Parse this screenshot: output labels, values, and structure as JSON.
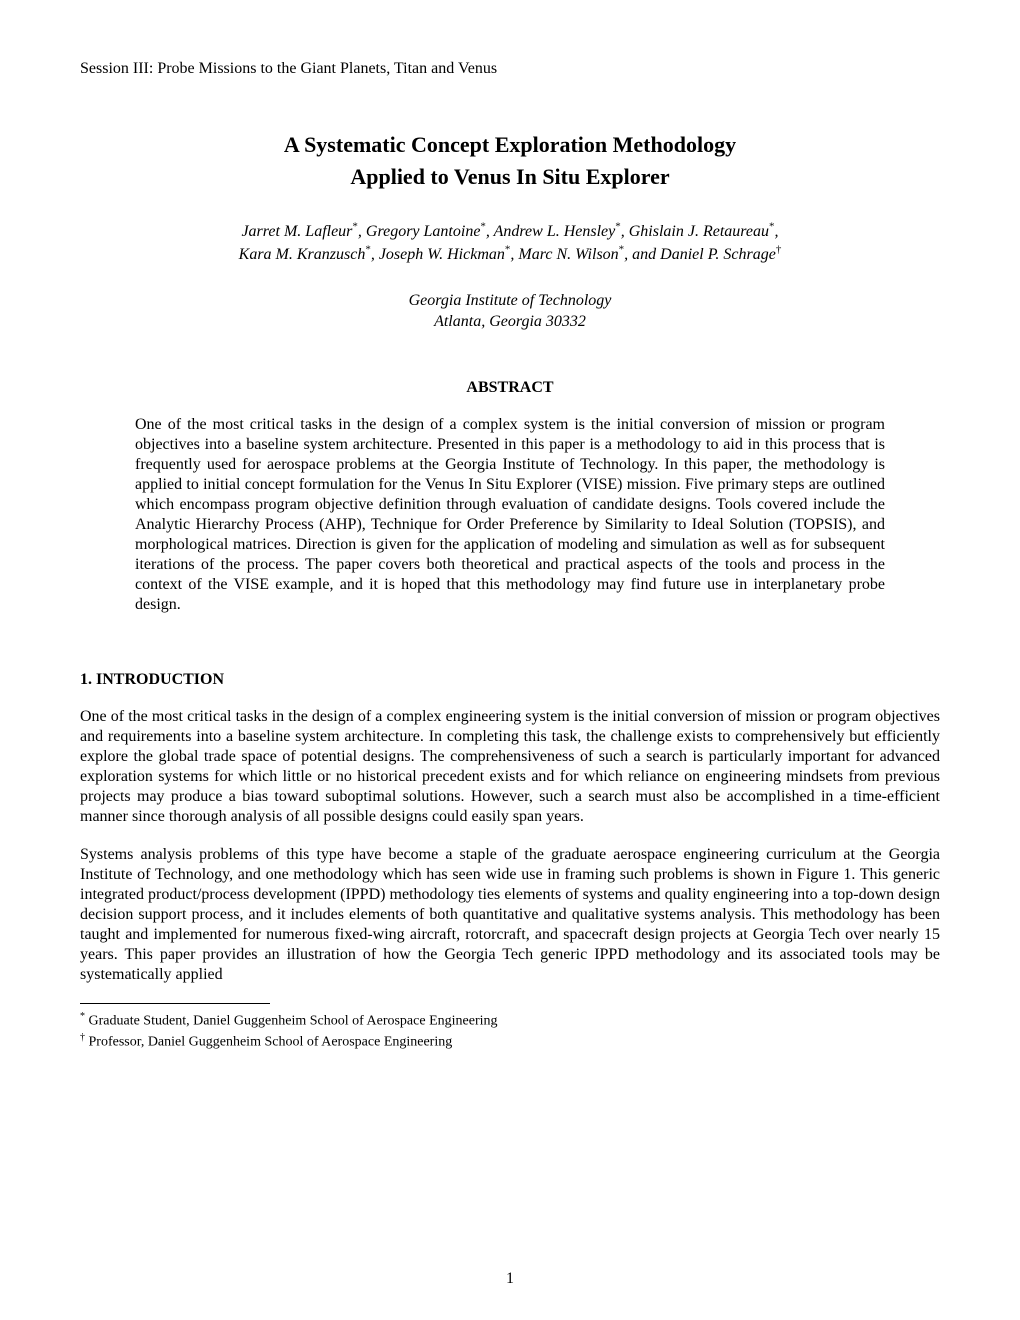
{
  "session_header": "Session III:  Probe Missions to the Giant Planets, Titan and Venus",
  "title_line1": "A Systematic Concept Exploration Methodology",
  "title_line2": "Applied to Venus In Situ Explorer",
  "authors_line1_html": "Jarret M. Lafleur<sup>*</sup>, Gregory Lantoine<sup>*</sup>, Andrew L. Hensley<sup>*</sup>, Ghislain J. Retaureau<sup>*</sup>,",
  "authors_line2_html": "Kara M. Kranzusch<sup>*</sup>, Joseph W. Hickman<sup>*</sup>, Marc N. Wilson<sup>*</sup>, and Daniel P. Schrage<sup>†</sup>",
  "affiliation_line1": "Georgia Institute of Technology",
  "affiliation_line2": "Atlanta, Georgia  30332",
  "abstract_heading": "ABSTRACT",
  "abstract_body": "One of the most critical tasks in the design of a complex system is the initial conversion of mission or program objectives into a baseline system architecture.  Presented in this paper is a methodology to aid in this process that is frequently used for aerospace problems at the Georgia Institute of Technology.  In this paper, the methodology is applied to initial concept formulation for the Venus In Situ Explorer (VISE) mission.  Five primary steps are outlined which encompass program objective definition through evaluation of candidate designs.  Tools covered include the Analytic Hierarchy Process (AHP), Technique for Order Preference by Similarity to Ideal Solution (TOPSIS), and morphological matrices. Direction is given for the application of modeling and simulation as well as for subsequent iterations of the process.  The paper covers both theoretical and practical aspects of the tools and process in the context of the VISE example, and it is hoped that this methodology may find future use in interplanetary probe design.",
  "section1_heading": "1. INTRODUCTION",
  "intro_para1": "One of the most critical tasks in the design of a complex engineering system is the initial conversion of mission or program objectives and requirements into a baseline system architecture.  In completing this task, the challenge exists to comprehensively but efficiently explore the global trade space of potential designs.  The comprehensiveness of such a search is particularly important for advanced exploration systems for which little or no historical precedent exists and for which reliance on engineering mindsets from previous projects may produce a bias toward suboptimal solutions.  However, such a search must also be accomplished in a time-efficient manner since thorough analysis of all possible designs could easily span years.",
  "intro_para2": "Systems analysis problems of this type have become a staple of the graduate aerospace engineering curriculum at the Georgia Institute of Technology, and one methodology which has seen wide use in framing such problems is shown in Figure 1.  This generic integrated product/process development (IPPD) methodology ties elements of systems and quality engineering into a top-down design decision support process, and it includes elements of both quantitative and qualitative systems analysis.  This methodology has been taught and implemented for numerous fixed-wing aircraft, rotorcraft, and spacecraft design projects at Georgia Tech over nearly 15 years.  This paper provides an illustration of how the Georgia Tech generic IPPD methodology and its associated tools may be systematically applied",
  "footnote1_html": "<sup>*</sup> Graduate Student, Daniel Guggenheim School of Aerospace Engineering",
  "footnote2_html": "<sup>†</sup> Professor, Daniel Guggenheim School of Aerospace Engineering",
  "page_number": "1"
}
